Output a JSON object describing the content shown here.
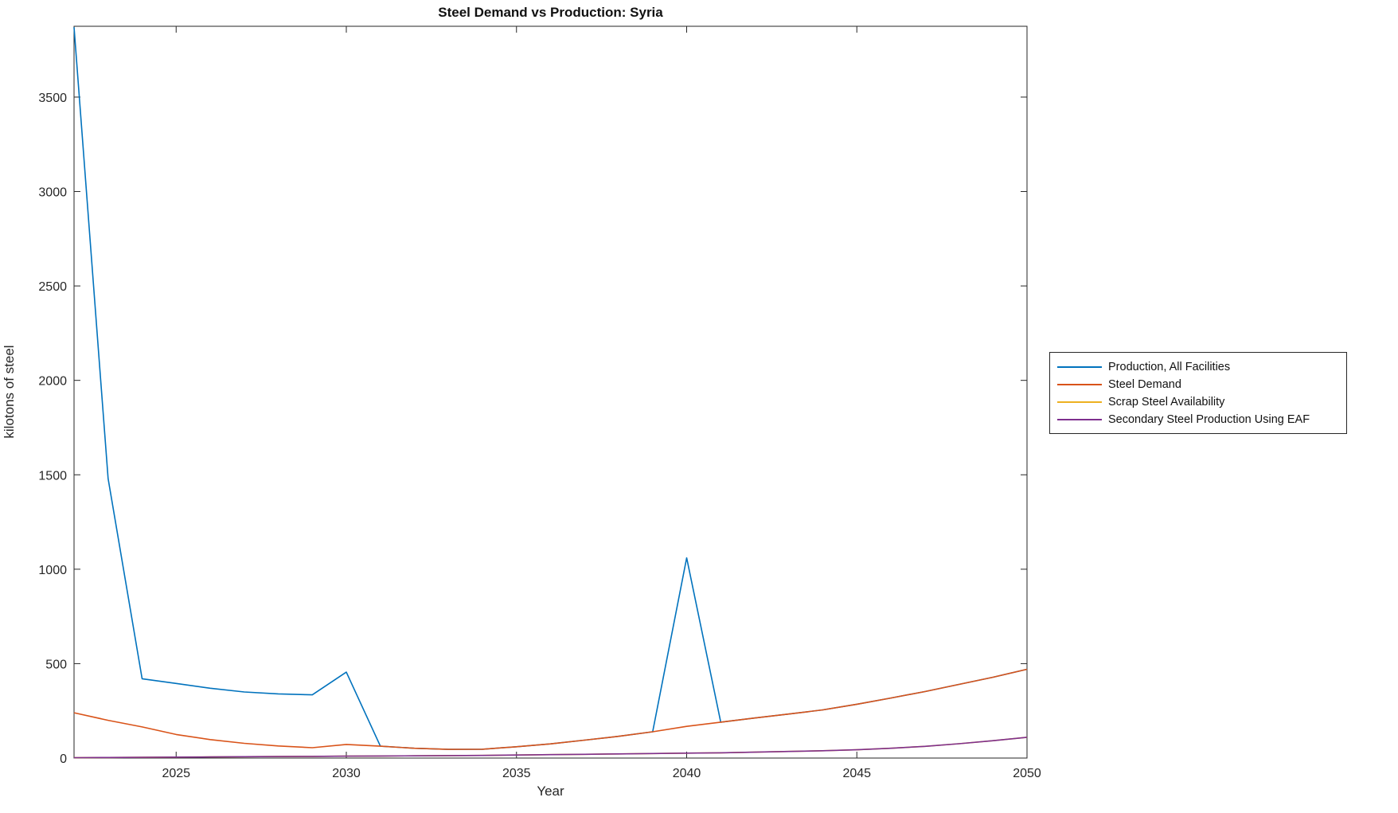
{
  "figure": {
    "title": "Steel Demand vs Production: Syria",
    "xlabel": "Year",
    "ylabel": "kilotons of steel"
  },
  "chart_data": {
    "type": "line",
    "title": "Steel Demand vs Production: Syria",
    "xlabel": "Year",
    "ylabel": "kilotons of steel",
    "xlim": [
      2022,
      2050
    ],
    "ylim": [
      0,
      3875
    ],
    "x_ticks": [
      2025,
      2030,
      2035,
      2040,
      2045,
      2050
    ],
    "y_ticks": [
      0,
      500,
      1000,
      1500,
      2000,
      2500,
      3000,
      3500
    ],
    "grid": false,
    "legend_position": "outside-right",
    "axis_color": "#262626",
    "x": [
      2022,
      2023,
      2024,
      2025,
      2026,
      2027,
      2028,
      2029,
      2030,
      2031,
      2032,
      2033,
      2034,
      2035,
      2036,
      2037,
      2038,
      2039,
      2040,
      2041,
      2042,
      2043,
      2044,
      2045,
      2046,
      2047,
      2048,
      2049,
      2050
    ],
    "series": [
      {
        "name": "Production, All Facilities",
        "color": "#0072BD",
        "values": [
          3870,
          1480,
          420,
          395,
          370,
          350,
          340,
          335,
          455,
          63,
          52,
          46,
          47,
          60,
          75,
          95,
          115,
          139,
          1060,
          190,
          212,
          233,
          255,
          285,
          318,
          352,
          390,
          428,
          470
        ],
        "note": "matches Steel Demand (hidden beneath it) during 2031-2039 and 2041-2050"
      },
      {
        "name": "Steel Demand",
        "color": "#D95319",
        "values": [
          240,
          200,
          165,
          125,
          98,
          78,
          64,
          55,
          72,
          63,
          52,
          46,
          47,
          60,
          75,
          95,
          115,
          139,
          168,
          190,
          212,
          233,
          255,
          285,
          318,
          352,
          390,
          428,
          470
        ]
      },
      {
        "name": "Scrap Steel Availability",
        "color": "#EDB120",
        "values": [
          2,
          3,
          4,
          5,
          6,
          7,
          8,
          9,
          10,
          11,
          12,
          13,
          14,
          16,
          18,
          20,
          22,
          24,
          26,
          28,
          31,
          35,
          39,
          44,
          52,
          62,
          76,
          92,
          110
        ],
        "note": "hidden beneath Secondary Steel Production Using EAF line"
      },
      {
        "name": "Secondary Steel Production Using EAF",
        "color": "#7E2F8E",
        "values": [
          2,
          3,
          4,
          5,
          6,
          7,
          8,
          9,
          10,
          11,
          12,
          13,
          14,
          16,
          18,
          20,
          22,
          24,
          26,
          28,
          31,
          35,
          39,
          44,
          52,
          62,
          76,
          92,
          110
        ]
      }
    ]
  }
}
